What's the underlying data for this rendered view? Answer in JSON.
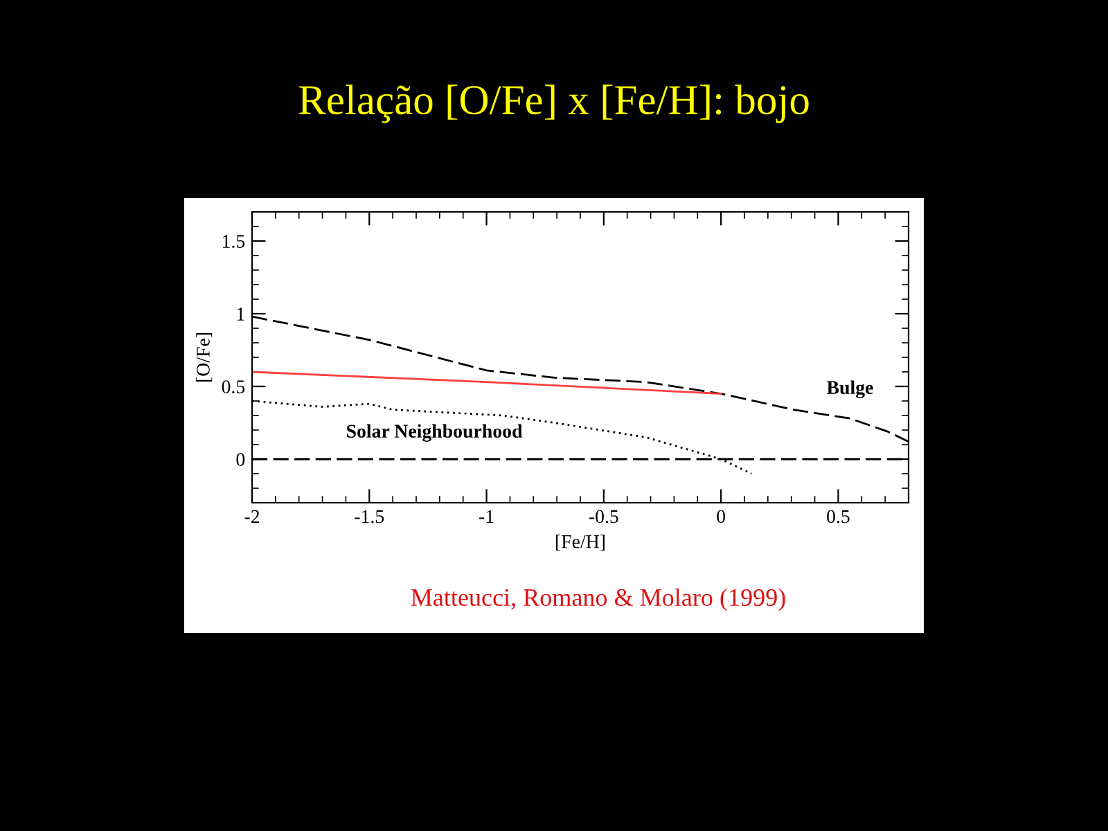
{
  "chart_data": {
    "type": "line",
    "title": "Relação [O/Fe] x [Fe/H]: bojo",
    "xlabel": "[Fe/H]",
    "ylabel": "[O/Fe]",
    "xlim": [
      -2,
      0.8
    ],
    "xticks": [
      -2,
      -1.5,
      -1,
      -0.5,
      0,
      0.5
    ],
    "ylim": [
      -0.3,
      1.7
    ],
    "yticks": [
      0,
      0.5,
      1,
      1.5
    ],
    "grid": false,
    "legend": false,
    "series": [
      {
        "color": "#000000",
        "line_style": "dashed",
        "x": [
          -2,
          -1.5,
          -1,
          -0.71,
          -0.32,
          0,
          0.31,
          0.55,
          0.71,
          0.8
        ],
        "values": [
          0.98,
          0.82,
          0.61,
          0.56,
          0.53,
          0.45,
          0.34,
          0.28,
          0.19,
          0.12
        ]
      },
      {
        "color": "#ff4040",
        "line_style": "solid",
        "x": [
          -2,
          -1,
          -0.5,
          0
        ],
        "values": [
          0.6,
          0.53,
          0.49,
          0.45
        ]
      },
      {
        "color": "#000000",
        "line_style": "dotted",
        "x": [
          -2,
          -1.7,
          -1.5,
          -1.4,
          -0.93,
          -0.71,
          -0.32,
          0,
          0.13
        ],
        "values": [
          0.4,
          0.36,
          0.38,
          0.34,
          0.3,
          0.25,
          0.15,
          0.0,
          -0.1
        ]
      }
    ],
    "ref_lines": [
      {
        "axis": "y",
        "value": 0,
        "color": "#000000",
        "line_style": "dashed"
      }
    ],
    "annotations": [
      "Solar Neighbourhood",
      "Bulge",
      "Matteucci, Romano & Molaro (1999)"
    ]
  }
}
